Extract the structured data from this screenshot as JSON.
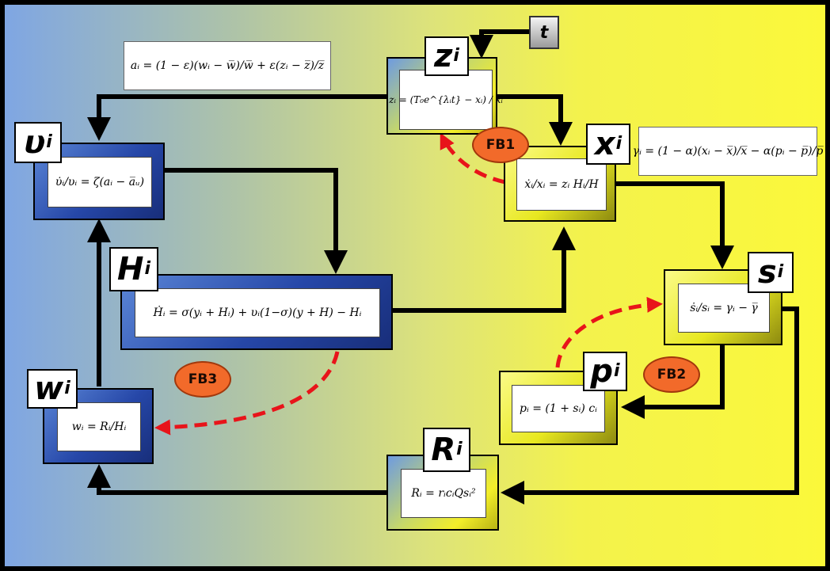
{
  "time_node": "t",
  "nodes": {
    "z": {
      "symbol": "z",
      "subscript": "i",
      "equation": "zᵢ = (T₀e^{λᵢt} − xᵢ) / xᵢ"
    },
    "u": {
      "symbol": "υ",
      "subscript": "i",
      "equation": "υ̇ᵢ/υᵢ = ζ(aᵢ − a̅ᵤ)"
    },
    "x": {
      "symbol": "x",
      "subscript": "i",
      "equation": "ẋᵢ/xᵢ = zᵢ Hᵢ/H"
    },
    "h": {
      "symbol": "H",
      "subscript": "i",
      "equation": "Ḣᵢ = σ(yᵢ + Hᵢ) + υᵢ(1−σ)(y + H) − Hᵢ"
    },
    "s": {
      "symbol": "s",
      "subscript": "i",
      "equation": "ṡᵢ/sᵢ = γᵢ − γ̅"
    },
    "p": {
      "symbol": "p",
      "subscript": "i",
      "equation": "pᵢ = (1 + sᵢ) cᵢ"
    },
    "w": {
      "symbol": "w",
      "subscript": "i",
      "equation": "wᵢ = Rᵢ/Hᵢ"
    },
    "r": {
      "symbol": "R",
      "subscript": "i",
      "equation": "Rᵢ = rᵢcᵢQsᵢ²"
    }
  },
  "formulas": {
    "a": "aᵢ = (1 − ε)(wᵢ − w̅)/w̅ + ε(zᵢ − z̅)/z̅",
    "gamma": "γᵢ = (1 − α)(xᵢ − x̅)/x̅ − α(pᵢ − p̅)/p̅"
  },
  "feedbacks": [
    "FB1",
    "FB2",
    "FB3"
  ]
}
